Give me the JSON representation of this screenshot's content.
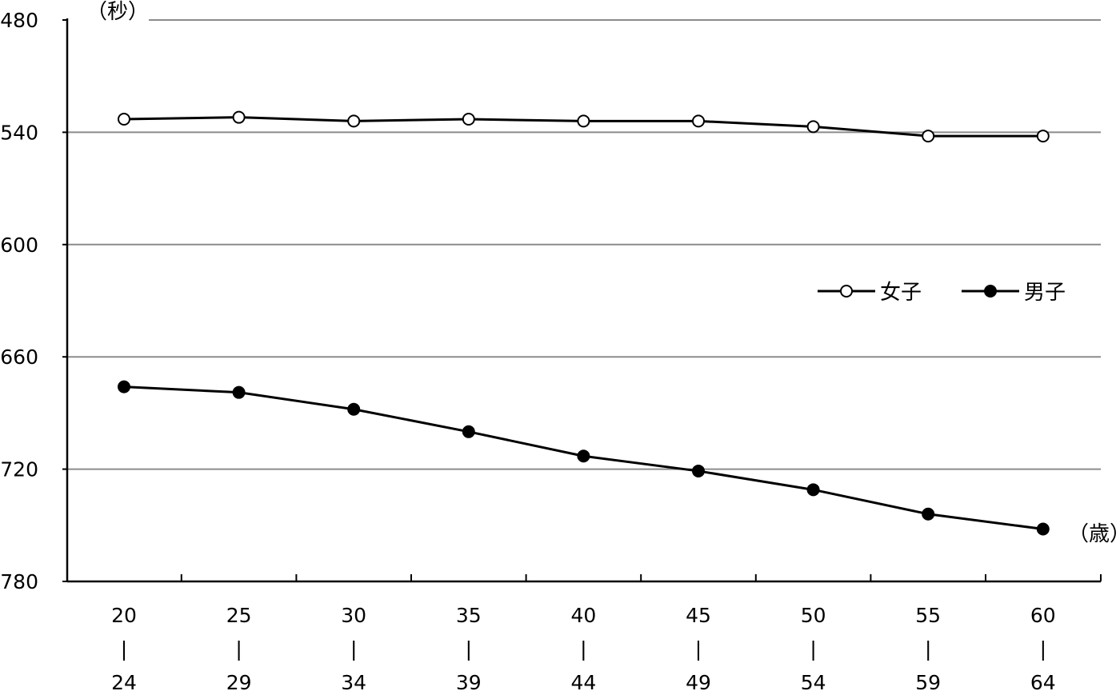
{
  "chart_data": {
    "type": "line",
    "y_unit": "（秒）",
    "x_unit": "（歳）",
    "y_axis": {
      "min": 480,
      "max": 780,
      "reversed": true,
      "ticks": [
        480,
        540,
        600,
        660,
        720,
        780
      ]
    },
    "categories": [
      {
        "top": "20",
        "sep": "|",
        "bottom": "24"
      },
      {
        "top": "25",
        "sep": "|",
        "bottom": "29"
      },
      {
        "top": "30",
        "sep": "|",
        "bottom": "34"
      },
      {
        "top": "35",
        "sep": "|",
        "bottom": "39"
      },
      {
        "top": "40",
        "sep": "|",
        "bottom": "44"
      },
      {
        "top": "45",
        "sep": "|",
        "bottom": "49"
      },
      {
        "top": "50",
        "sep": "|",
        "bottom": "54"
      },
      {
        "top": "55",
        "sep": "|",
        "bottom": "59"
      },
      {
        "top": "60",
        "sep": "|",
        "bottom": "64"
      }
    ],
    "series": [
      {
        "name": "女子",
        "marker": "open-circle",
        "color": "#000000",
        "values": [
          533,
          532,
          534,
          533,
          534,
          534,
          537,
          542,
          542
        ]
      },
      {
        "name": "男子",
        "marker": "filled-circle",
        "color": "#000000",
        "values": [
          676,
          679,
          688,
          700,
          713,
          721,
          731,
          744,
          752
        ]
      }
    ],
    "grid": true,
    "legend_position": "right-middle"
  }
}
